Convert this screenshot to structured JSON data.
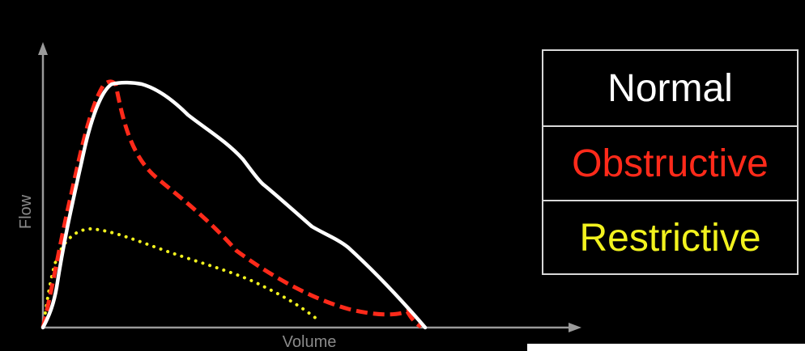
{
  "diagram": {
    "x_label": "Volume",
    "y_label": "Flow",
    "legend": [
      {
        "label": "Normal",
        "color": "#ffffff"
      },
      {
        "label": "Obstructive",
        "color": "#ff2a1a"
      },
      {
        "label": "Restrictive",
        "color": "#f2f21e"
      }
    ],
    "colors": {
      "background": "#000000",
      "axis": "#9a9a9a",
      "normal": "#ffffff",
      "obstructive": "#ff2a1a",
      "restrictive": "#f2f21e"
    }
  }
}
